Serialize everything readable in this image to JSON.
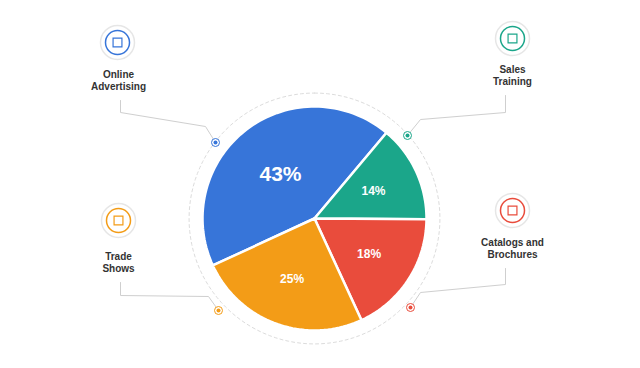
{
  "chart_data": {
    "type": "pie",
    "categories": [
      "Online\nAdvertising",
      "Sales\nTraining",
      "Catalogs and\nBrochures",
      "Trade\nShows"
    ],
    "values": [
      43,
      14,
      18,
      25
    ],
    "value_labels": [
      "43%",
      "14%",
      "18%",
      "25%"
    ],
    "colors": [
      "#3775d9",
      "#1ba68a",
      "#e94c3c",
      "#f39c17"
    ],
    "data_labels": true
  }
}
